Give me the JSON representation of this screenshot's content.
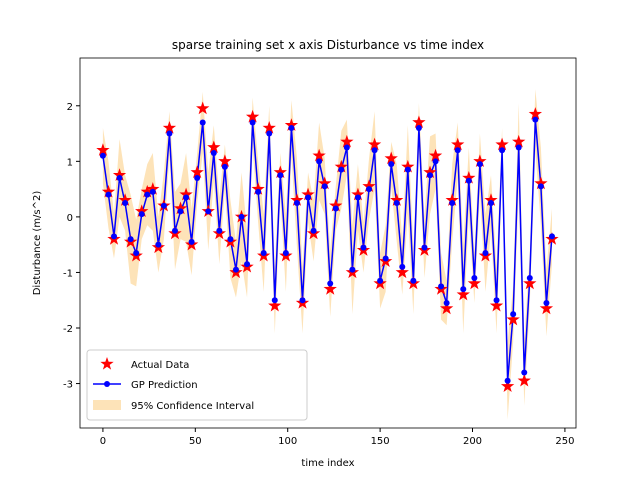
{
  "chart_data": {
    "type": "line",
    "title": "sparse training set x axis Disturbance vs time index",
    "x_label": "time index",
    "y_label": "Disturbance (m/s^2)",
    "x": [
      0,
      3,
      6,
      9,
      12,
      15,
      18,
      21,
      24,
      27,
      30,
      33,
      36,
      39,
      42,
      45,
      48,
      51,
      54,
      57,
      60,
      63,
      66,
      69,
      72,
      75,
      78,
      81,
      84,
      87,
      90,
      93,
      96,
      99,
      102,
      105,
      108,
      111,
      114,
      117,
      120,
      123,
      126,
      129,
      132,
      135,
      138,
      141,
      144,
      147,
      150,
      153,
      156,
      159,
      162,
      165,
      168,
      171,
      174,
      177,
      180,
      183,
      186,
      189,
      192,
      195,
      198,
      201,
      204,
      207,
      210,
      213,
      216,
      219,
      222,
      225,
      228,
      231,
      234,
      237,
      240,
      243
    ],
    "series": [
      {
        "name": "Actual Data",
        "color": "#ff0000",
        "values": [
          1.2,
          0.45,
          -0.4,
          0.75,
          0.3,
          -0.45,
          -0.7,
          0.1,
          0.45,
          0.5,
          -0.55,
          0.2,
          1.6,
          -0.3,
          0.15,
          0.4,
          -0.5,
          0.8,
          1.95,
          0.1,
          1.25,
          -0.3,
          1.0,
          -0.45,
          -1.0,
          0,
          -0.9,
          1.8,
          0.5,
          -0.7,
          1.6,
          -1.6,
          0.8,
          -0.7,
          1.65,
          0.3,
          -1.55,
          0.4,
          -0.3,
          1.1,
          0.6,
          -1.3,
          0.2,
          0.9,
          1.35,
          -1.0,
          0.4,
          -0.6,
          0.55,
          1.3,
          -1.2,
          -0.8,
          1.05,
          0.3,
          -1.0,
          0.9,
          -1.2,
          1.7,
          -0.6,
          0.8,
          1.1,
          -1.3,
          -1.65,
          0.3,
          1.3,
          -1.4,
          0.7,
          -1.2,
          1.0,
          -0.7,
          0.3,
          -1.6,
          1.3,
          -3.05,
          -1.85,
          1.35,
          -2.95,
          -1.2,
          1.85,
          0.6,
          -1.65,
          -0.4
        ]
      },
      {
        "name": "GP Prediction",
        "color": "#0000ff",
        "values": [
          1.1,
          0.4,
          -0.35,
          0.7,
          0.25,
          -0.4,
          -0.65,
          0.05,
          0.4,
          0.45,
          -0.5,
          0.2,
          1.5,
          -0.25,
          0.1,
          0.35,
          -0.45,
          0.7,
          1.7,
          0.1,
          1.15,
          -0.25,
          0.9,
          -0.4,
          -0.95,
          0,
          -0.85,
          1.7,
          0.45,
          -0.65,
          1.5,
          -1.5,
          0.75,
          -0.65,
          1.6,
          0.25,
          -1.5,
          0.35,
          -0.25,
          1.0,
          0.55,
          -1.2,
          0.15,
          0.85,
          1.25,
          -0.95,
          0.35,
          -0.55,
          0.5,
          1.2,
          -1.15,
          -0.75,
          0.95,
          0.25,
          -0.9,
          0.85,
          -1.15,
          1.6,
          -0.55,
          0.75,
          1.0,
          -1.25,
          -1.55,
          0.25,
          1.2,
          -1.3,
          0.65,
          -1.1,
          0.95,
          -0.65,
          0.25,
          -1.5,
          1.2,
          -2.95,
          -1.75,
          1.25,
          -2.8,
          -1.1,
          1.75,
          0.55,
          -1.55,
          -0.35
        ]
      },
      {
        "name": "95% Confidence Interval",
        "color": "#fde3b8",
        "errors": [
          0.5,
          0.6,
          0.4,
          0.7,
          0.5,
          0.8,
          0.6,
          0.45,
          0.55,
          0.7,
          0.5,
          0.6,
          0.4,
          0.7,
          0.5,
          0.8,
          0.6,
          0.45,
          0.55,
          0.7,
          0.5,
          0.6,
          0.4,
          0.7,
          0.5,
          0.8,
          0.6,
          0.45,
          0.55,
          0.7,
          0.5,
          0.6,
          0.4,
          0.7,
          0.5,
          0.8,
          0.6,
          0.45,
          0.55,
          0.7,
          0.5,
          0.6,
          0.4,
          0.7,
          0.5,
          0.8,
          0.6,
          0.45,
          0.55,
          0.7,
          0.5,
          0.6,
          0.4,
          0.7,
          0.5,
          0.8,
          0.6,
          0.45,
          0.55,
          0.7,
          0.5,
          0.6,
          0.4,
          0.7,
          0.5,
          0.8,
          0.6,
          0.45,
          0.55,
          0.7,
          0.5,
          0.6,
          0.4,
          0.7,
          0.5,
          0.8,
          0.6,
          0.45,
          0.55,
          0.7,
          0.6,
          0.5
        ]
      }
    ],
    "xlim": [
      -12.4,
      256
    ],
    "xticks": [
      0,
      50,
      100,
      150,
      200,
      250
    ],
    "ylim": [
      -3.8,
      2.86
    ],
    "yticks": [
      -3,
      -2,
      -1,
      0,
      1,
      2
    ],
    "legend": "lower left"
  }
}
